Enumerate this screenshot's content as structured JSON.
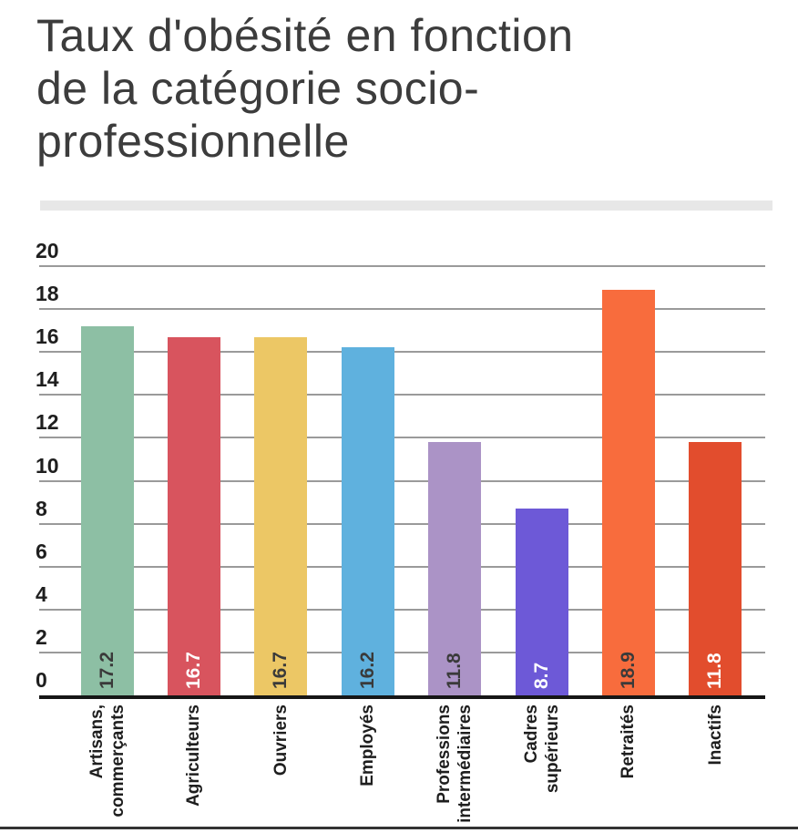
{
  "page": {
    "title": "Taux d'obésité en fonction de la catégorie socio-professionnelle"
  },
  "chart_data": {
    "type": "bar",
    "title": "Taux d'obésité en fonction de la catégorie socio-professionnelle",
    "xlabel": "",
    "ylabel": "",
    "ylim": [
      0,
      20
    ],
    "ytick_step": 2,
    "ytick_labels": [
      "0",
      "2",
      "4",
      "6",
      "8",
      "10",
      "12",
      "14",
      "16",
      "18",
      "20"
    ],
    "grid": true,
    "legend": "none",
    "categories": [
      "Artisans,\ncommerçants",
      "Agriculteurs",
      "Ouvriers",
      "Employés",
      "Professions\nintermédiaires",
      "Cadres\nsupérieurs",
      "Retraités",
      "Inactifs"
    ],
    "values": [
      17.2,
      16.7,
      16.7,
      16.2,
      11.8,
      8.7,
      18.9,
      11.8
    ],
    "value_labels": [
      "17.2",
      "16.7",
      "16.7",
      "16.2",
      "11.8",
      "8.7",
      "18.9",
      "11.8"
    ],
    "bar_colors": [
      "#8DBFA4",
      "#D8545E",
      "#ECC765",
      "#5FB1DE",
      "#AB93C6",
      "#6D59D7",
      "#F86C3D",
      "#E24D2D"
    ],
    "value_label_colors": [
      "#3A3A3A",
      "#FFFFFF",
      "#3A3A3A",
      "#3A3A3A",
      "#3A3A3A",
      "#FFFFFF",
      "#3A3A3A",
      "#FFFFFF"
    ]
  },
  "colors": {
    "background": "#ffffff",
    "title_text": "#3c3c3c",
    "title_divider": "#e7e7e7",
    "gridline": "#9a9a9a",
    "axis_text": "#1e1e1e",
    "axis_baseline": "#161616",
    "bottom_rule": "#333333"
  }
}
